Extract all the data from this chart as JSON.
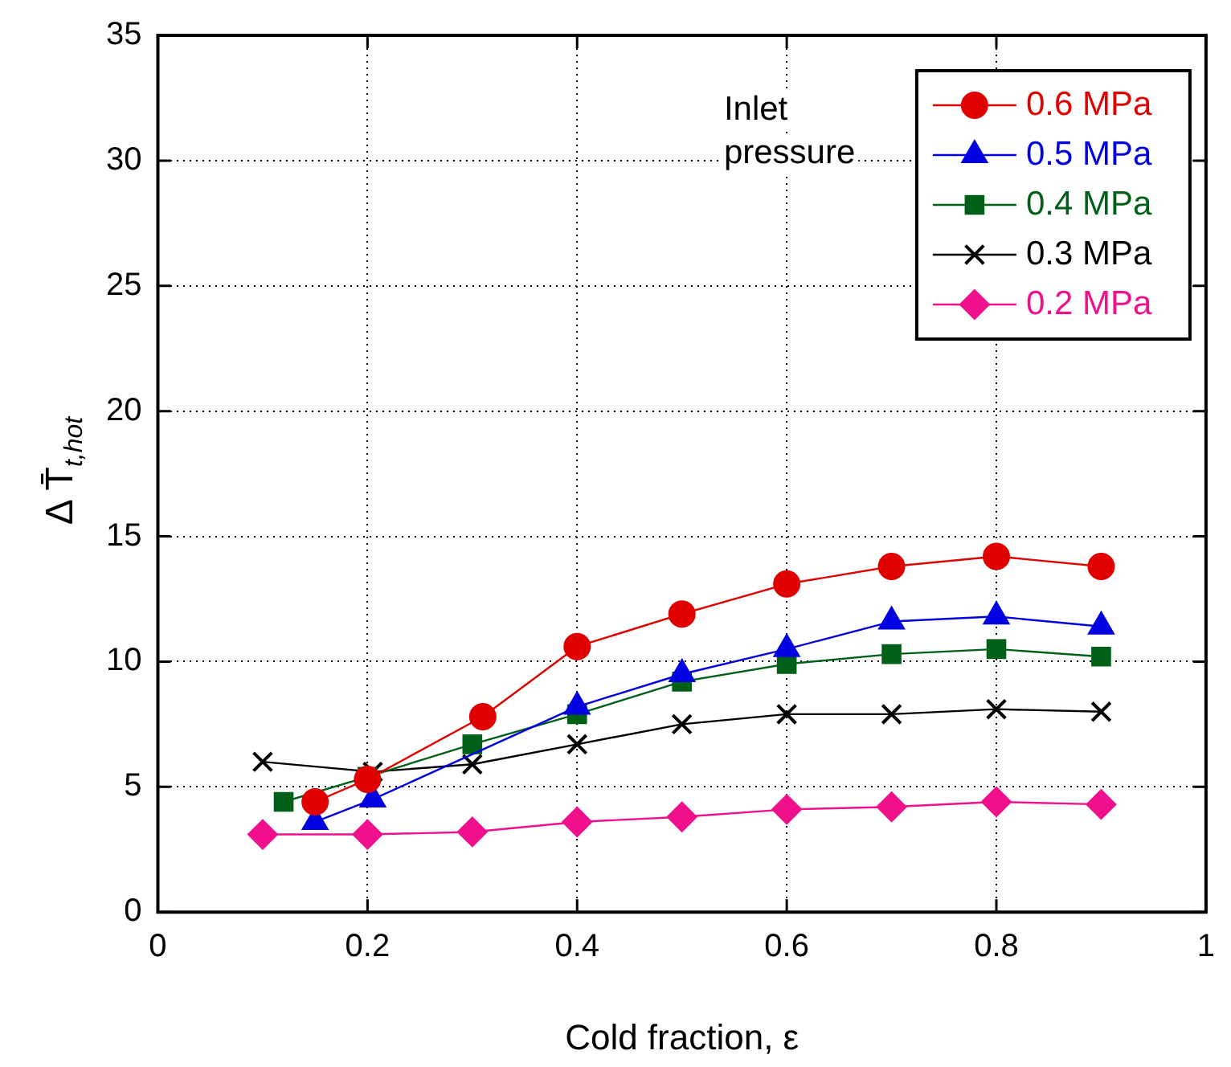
{
  "chart_data": {
    "type": "line",
    "xlabel": "Cold fraction, ε",
    "ylabel": "Δ T̄$_{t,hot}$",
    "legend_title": "Inlet\npressure",
    "xlim": [
      0,
      1
    ],
    "xticks": [
      0,
      0.2,
      0.4,
      0.6,
      0.8,
      1
    ],
    "ylim": [
      0,
      35
    ],
    "yticks": [
      0,
      5,
      10,
      15,
      20,
      25,
      30,
      35
    ],
    "grid": true,
    "legend": "top right",
    "line_style": "solid",
    "series": [
      {
        "name": "0.6 MPa",
        "color": "#e00000",
        "marker": "circle",
        "x": [
          0.15,
          0.2,
          0.31,
          0.4,
          0.5,
          0.6,
          0.7,
          0.8,
          0.9
        ],
        "values": [
          4.4,
          5.3,
          7.8,
          10.6,
          11.9,
          13.1,
          13.8,
          14.2,
          13.8
        ]
      },
      {
        "name": "0.5 MPa",
        "color": "#0000e0",
        "marker": "triangle",
        "x": [
          0.15,
          0.205,
          0.4,
          0.5,
          0.6,
          0.7,
          0.8,
          0.9
        ],
        "values": [
          3.6,
          4.5,
          8.2,
          9.5,
          10.5,
          11.6,
          11.8,
          11.4
        ]
      },
      {
        "name": "0.4 MPa",
        "color": "#006018",
        "marker": "square",
        "x": [
          0.12,
          0.2,
          0.3,
          0.4,
          0.5,
          0.6,
          0.7,
          0.8,
          0.9
        ],
        "values": [
          4.4,
          5.4,
          6.7,
          7.9,
          9.2,
          9.9,
          10.3,
          10.5,
          10.2
        ]
      },
      {
        "name": "0.3 MPa",
        "color": "#000000",
        "marker": "cross",
        "x": [
          0.1,
          0.205,
          0.3,
          0.4,
          0.5,
          0.6,
          0.7,
          0.8,
          0.9
        ],
        "values": [
          6.0,
          5.6,
          5.9,
          6.7,
          7.5,
          7.9,
          7.9,
          8.1,
          8.0
        ]
      },
      {
        "name": "0.2 MPa",
        "color": "#f0108c",
        "marker": "diamond",
        "x": [
          0.1,
          0.2,
          0.3,
          0.4,
          0.5,
          0.6,
          0.7,
          0.8,
          0.9
        ],
        "values": [
          3.1,
          3.1,
          3.2,
          3.6,
          3.8,
          4.1,
          4.2,
          4.4,
          4.3
        ]
      }
    ]
  }
}
